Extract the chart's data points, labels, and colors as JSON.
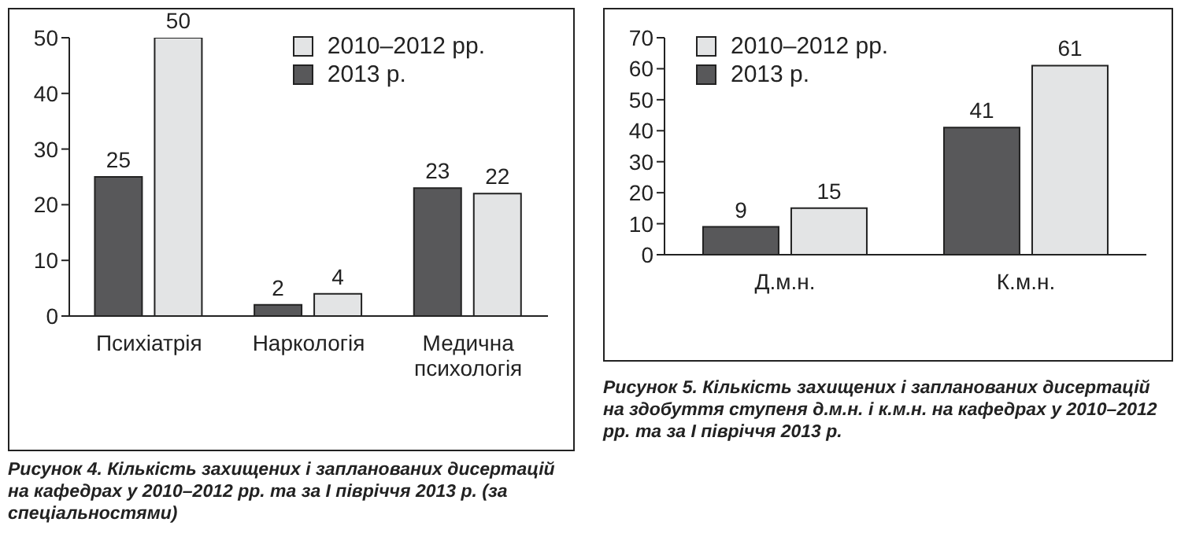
{
  "chart_data": [
    {
      "type": "bar",
      "categories": [
        "Психіатрія",
        "Наркологія",
        "Медична психологія"
      ],
      "series": [
        {
          "name": "2013 р.",
          "color": "#58585a",
          "values": [
            25,
            2,
            23
          ]
        },
        {
          "name": "2010–2012 рр.",
          "color": "#e3e4e5",
          "values": [
            50,
            4,
            22
          ]
        }
      ],
      "ylim": [
        0,
        50
      ],
      "yticks": [
        0,
        10,
        20,
        30,
        40,
        50
      ],
      "data_labels": true,
      "grid": false,
      "legend": "top right",
      "annotations": [
        "Рисунок 4. Кількість захищених і запланованих дисертацій на кафедрах у 2010–2012 рр. та за І півріччя 2013 р. (за спеціальностями)"
      ]
    },
    {
      "type": "bar",
      "categories": [
        "Д.м.н.",
        "К.м.н."
      ],
      "series": [
        {
          "name": "2013 р.",
          "color": "#58585a",
          "values": [
            9,
            41
          ]
        },
        {
          "name": "2010–2012 рр.",
          "color": "#e3e4e5",
          "values": [
            15,
            61
          ]
        }
      ],
      "ylim": [
        0,
        70
      ],
      "yticks": [
        0,
        10,
        20,
        30,
        40,
        50,
        60,
        70
      ],
      "data_labels": true,
      "grid": false,
      "legend": "top left",
      "annotations": [
        "Рисунок 5. Кількість захищених і запланованих дисертацій на здобуття ступеня д.м.н. і к.м.н. на кафедрах у 2010–2012 рр. та за І півріччя 2013 р."
      ]
    }
  ]
}
